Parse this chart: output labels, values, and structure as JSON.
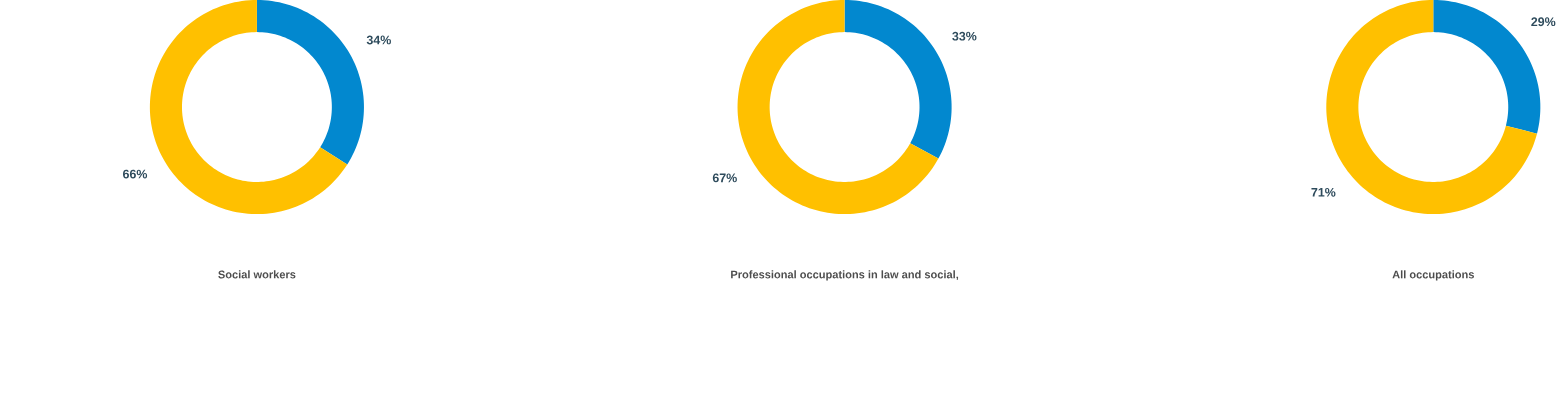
{
  "chart_data": [
    {
      "type": "donut",
      "title": "Social workers",
      "categories": [
        null,
        null
      ],
      "values": [
        34,
        66
      ],
      "colors": [
        "#0288cf",
        "#ffc000"
      ],
      "value_labels": [
        "34%",
        "66%"
      ]
    },
    {
      "type": "donut",
      "title": "Professional occupations in law and social,",
      "categories": [
        null,
        null
      ],
      "values": [
        33,
        67
      ],
      "colors": [
        "#0288cf",
        "#ffc000"
      ],
      "value_labels": [
        "33%",
        "67%"
      ]
    },
    {
      "type": "donut",
      "title": "All occupations",
      "categories": [
        null,
        null
      ],
      "values": [
        29,
        71
      ],
      "colors": [
        "#0288cf",
        "#ffc000"
      ],
      "value_labels": [
        "29%",
        "71%"
      ]
    }
  ]
}
